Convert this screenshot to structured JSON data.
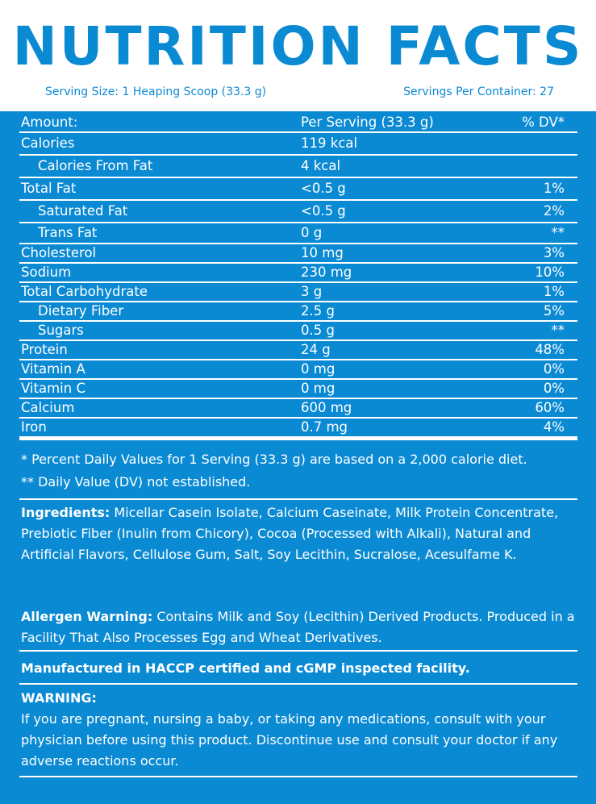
{
  "header": {
    "title": "NUTRITION FACTS",
    "serving_size": "Serving Size: 1 Heaping Scoop (33.3 g)",
    "servings_per_container": "Servings Per Container: 27"
  },
  "table": {
    "columns": [
      "Amount:",
      "Per Serving (33.3 g)",
      "% DV*"
    ],
    "rows": [
      [
        "Calories",
        "119 kcal"
      ],
      [
        "Calories From Fat",
        "4 kcal"
      ],
      [
        "Total Fat",
        "<0.5 g",
        "1%"
      ],
      [
        "Saturated Fat",
        "<0.5 g",
        "2%"
      ],
      [
        "Trans Fat",
        "0 g",
        "**"
      ],
      [
        "Cholesterol",
        "10 mg",
        "3%"
      ],
      [
        "Sodium",
        "230 mg",
        "10%"
      ],
      [
        "Total Carbohydrate",
        "3 g",
        "1%"
      ],
      [
        "Dietary Fiber",
        "2.5 g",
        "5%"
      ],
      [
        "Sugars",
        "0.5 g",
        "**"
      ],
      [
        "Protein",
        "24 g",
        "48%"
      ],
      [
        "Vitamin A",
        "0 mg",
        "0%"
      ],
      [
        "Vitamin C",
        "0 mg",
        "0%"
      ],
      [
        "Calcium",
        "600 mg",
        "60%"
      ],
      [
        "Iron",
        "0.7 mg",
        "4%"
      ]
    ]
  },
  "footnotes": [
    "* Percent Daily Values for 1 Serving (33.3 g) are based on a 2,000 calorie diet.",
    "** Daily Value (DV) not established."
  ],
  "ingredients": {
    "label": "Ingredients:",
    "text": "Micellar Casein Isolate, Calcium Caseinate, Milk Protein Concentrate, Prebiotic Fiber (Inulin from Chicory), Cocoa (Processed with Alkali), Natural and Artificial Flavors, Cellulose Gum, Salt, Soy Lecithin, Sucralose, Acesulfame K."
  },
  "allergen": {
    "label": "Allergen Warning:",
    "text": "Contains Milk and Soy (Lecithin) Derived Products. Produced in a Facility That Also Processes Egg and Wheat Derivatives."
  },
  "manufactured": "Manufactured in HACCP certified and cGMP inspected facility.",
  "warning": {
    "title": "WARNING:",
    "text": "If you are pregnant, nursing a baby, or taking any medications, consult with your physician before using this product. Discontinue use and consult your doctor if any adverse reactions occur."
  }
}
